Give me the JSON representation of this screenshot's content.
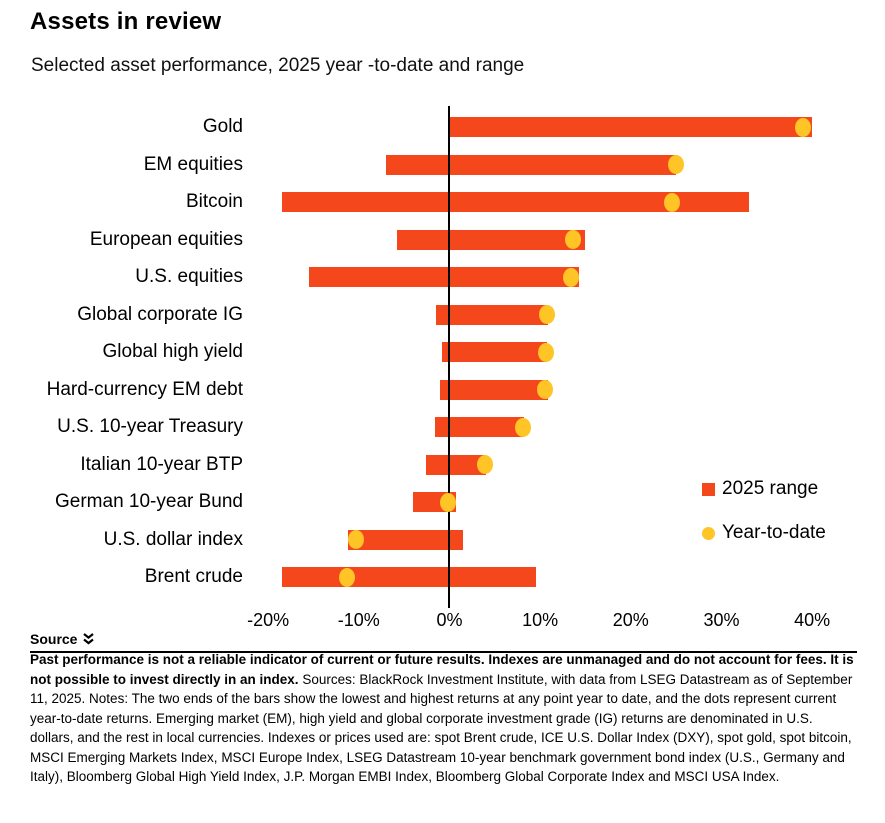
{
  "page": {
    "title": "Assets in review",
    "subtitle": "Selected asset performance, 2025 year -to-date and range"
  },
  "chart_data": {
    "type": "bar",
    "variant": "horizontal-range-bars-with-ytd-dots",
    "title": "Assets in review",
    "subtitle": "Selected asset performance, 2025 year-to-date and range",
    "xlabel": "",
    "ylabel": "",
    "xlim": [
      -20,
      40
    ],
    "x_tick_labels": [
      "-20%",
      "-10%",
      "0%",
      "10%",
      "20%",
      "30%",
      "40%"
    ],
    "x_tick_values": [
      -20,
      -10,
      0,
      10,
      20,
      30,
      40
    ],
    "grid": false,
    "legend_position": "right",
    "categories": [
      "Gold",
      "EM equities",
      "Bitcoin",
      "European equities",
      "U.S. equities",
      "Global corporate IG",
      "Global high yield",
      "Hard-currency EM debt",
      "U.S. 10-year Treasury",
      "Italian 10-year BTP",
      "German 10-year Bund",
      "U.S. dollar index",
      "Brent crude"
    ],
    "series": [
      {
        "name": "2025 range",
        "type": "range",
        "marker": "square",
        "color": "#F4481C",
        "low": [
          0,
          -7,
          -18.5,
          -5.8,
          -15.5,
          -1.5,
          -0.8,
          -1.0,
          -1.6,
          -2.6,
          -4.0,
          -11.2,
          -18.5
        ],
        "high": [
          40,
          25,
          33,
          15,
          14.3,
          10.9,
          10.8,
          10.9,
          8.2,
          4.0,
          0.7,
          1.5,
          9.5
        ]
      },
      {
        "name": "Year-to-date",
        "type": "dot",
        "marker": "circle",
        "color": "#FFC425",
        "values": [
          39,
          25,
          24.5,
          13.6,
          13.4,
          10.8,
          10.6,
          10.5,
          8.1,
          3.9,
          -0.2,
          -10.3,
          -11.3
        ]
      }
    ],
    "legend": [
      {
        "label": "2025 range",
        "marker": "square",
        "color": "#F4481C"
      },
      {
        "label": "Year-to-date",
        "marker": "circle",
        "color": "#FFC425"
      }
    ]
  },
  "footer": {
    "source_label": "Source",
    "disclaimer_bold": "Past performance is not a reliable indicator of current or future results. Indexes are unmanaged and do not account for fees. It is not possible to invest directly in an index.",
    "disclaimer_rest": "Sources: BlackRock Investment Institute, with data from LSEG Datastream as of September 11, 2025. Notes: The two ends of the bars show the lowest and highest returns at any point year to date, and the dots represent current year-to-date returns. Emerging market (EM), high yield and global corporate investment grade (IG) returns are denominated in U.S. dollars, and the rest in local currencies. Indexes or prices used are: spot Brent crude, ICE U.S. Dollar Index (DXY), spot gold, spot bitcoin, MSCI Emerging Markets Index, MSCI Europe Index, LSEG Datastream 10-year benchmark government bond index (U.S., Germany and Italy), Bloomberg Global High Yield Index, J.P. Morgan EMBI Index, Bloomberg Global Corporate Index and MSCI USA Index."
  },
  "colors": {
    "range_bar": "#F4481C",
    "ytd_dot": "#FFC425",
    "axis_line": "#000000",
    "text": "#000000",
    "background": "#FFFFFF"
  }
}
